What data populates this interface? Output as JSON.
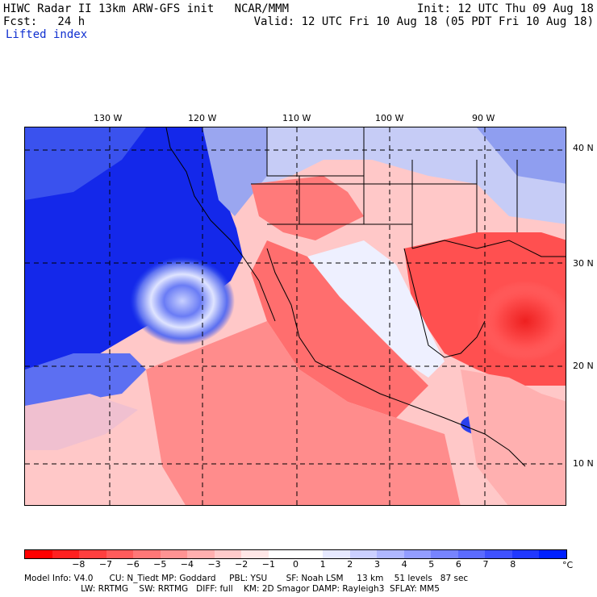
{
  "header": {
    "line1_left": "HIWC Radar II 13km ARW-GFS init   NCAR/MMM",
    "line1_right": "Init: 12 UTC Thu 09 Aug 18",
    "line2_left": "Fcst:   24 h",
    "line2_right": "Valid: 12 UTC Fri 10 Aug 18 (05 PDT Fri 10 Aug 18)",
    "field_name": "Lifted index"
  },
  "axes": {
    "lon_labels": [
      "130 W",
      "120 W",
      "110 W",
      "100 W",
      "90 W"
    ],
    "lat_labels": [
      "40 N",
      "30 N",
      "20 N",
      "10 N"
    ]
  },
  "colorbar": {
    "colors": [
      "#ff0000",
      "#ff2020",
      "#ff3f3f",
      "#ff5b5b",
      "#ff7777",
      "#ff9393",
      "#ffafaf",
      "#ffcbcb",
      "#ffe6e6",
      "#ffffff",
      "#ffffff",
      "#e6e9ff",
      "#cbd0ff",
      "#afb7ff",
      "#939dff",
      "#7784ff",
      "#5b6bff",
      "#3f51ff",
      "#2038ff",
      "#0020ff"
    ],
    "ticks": [
      "−8",
      "−7",
      "−6",
      "−5",
      "−4",
      "−3",
      "−2",
      "−1",
      "0",
      "1",
      "2",
      "3",
      "4",
      "5",
      "6",
      "7",
      "8"
    ],
    "unit": "°C"
  },
  "footer": {
    "line1": "Model Info: V4.0      CU: N_Tiedt MP: Goddard     PBL: YSU       SF: Noah LSM     13 km    51 levels   87 sec",
    "line2": "                     LW: RRTMG    SW: RRTMG   DIFF: full    KM: 2D Smagor DAMP: Rayleigh3  SFLAY: MM5"
  }
}
